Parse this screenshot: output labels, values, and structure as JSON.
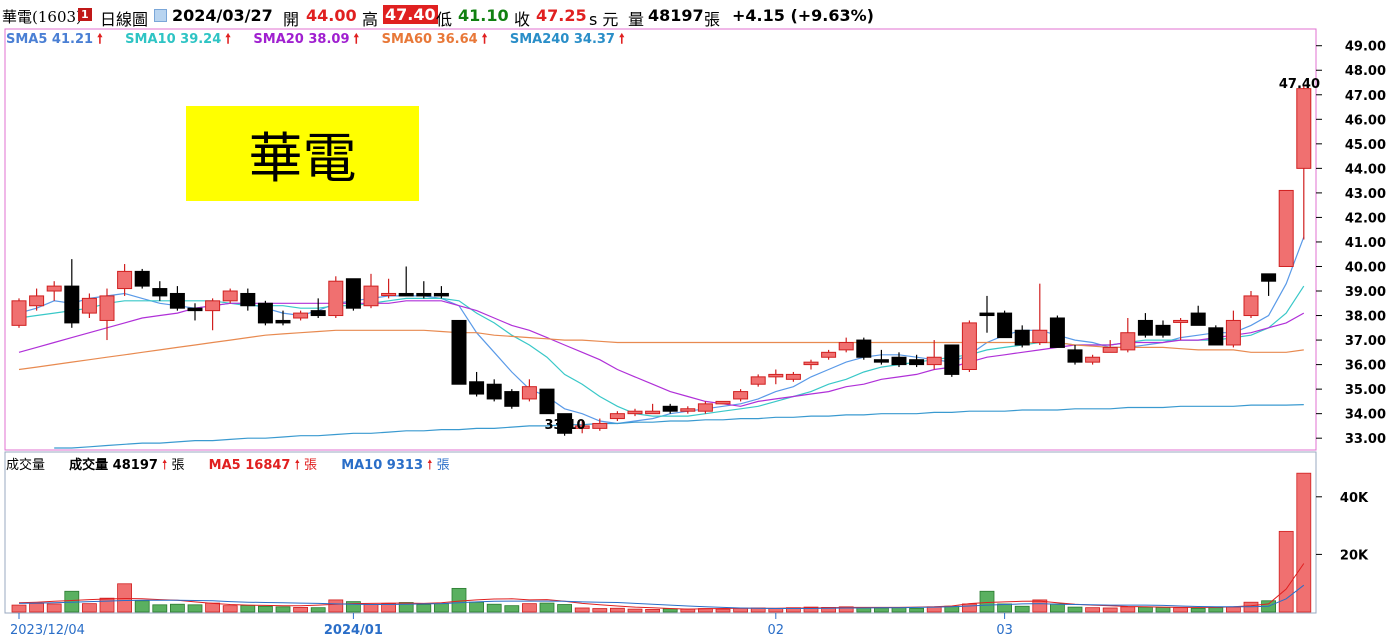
{
  "header": {
    "symbol": "華電(1603)",
    "flag": "1",
    "period": "日線圖",
    "date": "2024/03/27",
    "open_label": "開",
    "open": "44.00",
    "high_label": "高",
    "high": "47.40",
    "low_label": "低",
    "low": "41.10",
    "close_label": "收",
    "close": "47.25",
    "unit": "s 元",
    "volume_label": "量",
    "volume": "48197",
    "volume_unit": "張",
    "change": "+4.15 (+9.63%)"
  },
  "ma_legend": [
    {
      "label": "SMA5 41.21",
      "color": "#4a7fd4"
    },
    {
      "label": "SMA10 39.24",
      "color": "#2ec4c4"
    },
    {
      "label": "SMA20 38.09",
      "color": "#a020d0"
    },
    {
      "label": "SMA60 36.64",
      "color": "#e87838"
    },
    {
      "label": "SMA240 34.37",
      "color": "#2a8ec8"
    }
  ],
  "vol_legend": {
    "title": "成交量",
    "items": [
      {
        "label": "成交量 48197",
        "unit": "張",
        "color": "#000000"
      },
      {
        "label": "MA5 16847",
        "unit": "張",
        "color": "#e02020"
      },
      {
        "label": "MA10 9313",
        "unit": "張",
        "color": "#2a6ec8"
      }
    ]
  },
  "stamp_text": "華電",
  "annotations": {
    "high_label": "47.40",
    "low_label": "33.10"
  },
  "chart_data": {
    "type": "candlestick",
    "ylim": [
      32.6,
      49.6
    ],
    "yticks": [
      33,
      34,
      35,
      36,
      37,
      38,
      39,
      40,
      41,
      42,
      43,
      44,
      45,
      46,
      47,
      48,
      49
    ],
    "ytick_labels": [
      "33.00",
      "34.00",
      "35.00",
      "36.00",
      "37.00",
      "38.00",
      "39.00",
      "40.00",
      "41.00",
      "42.00",
      "43.00",
      "44.00",
      "45.00",
      "46.00",
      "47.00",
      "48.00",
      "49.00"
    ],
    "volume_ylim": [
      0,
      50000
    ],
    "volume_ticks": [
      20000,
      40000
    ],
    "volume_tick_labels": [
      "20K",
      "40K"
    ],
    "x_labels": [
      {
        "label": "2023/12/04",
        "index": 0
      },
      {
        "label": "2024/01",
        "index": 19
      },
      {
        "label": "02",
        "index": 43
      },
      {
        "label": "03",
        "index": 56
      }
    ],
    "candles": [
      {
        "o": 37.6,
        "h": 38.7,
        "l": 37.5,
        "c": 38.6,
        "v": 2400
      },
      {
        "o": 38.4,
        "h": 39.1,
        "l": 38.2,
        "c": 38.8,
        "v": 3000
      },
      {
        "o": 39.0,
        "h": 39.4,
        "l": 38.6,
        "c": 39.2,
        "v": 2800
      },
      {
        "o": 39.2,
        "h": 40.3,
        "l": 37.5,
        "c": 37.7,
        "v": 7200
      },
      {
        "o": 38.1,
        "h": 38.9,
        "l": 37.9,
        "c": 38.7,
        "v": 2900
      },
      {
        "o": 37.8,
        "h": 39.1,
        "l": 37.0,
        "c": 38.8,
        "v": 4800
      },
      {
        "o": 39.1,
        "h": 40.1,
        "l": 38.8,
        "c": 39.8,
        "v": 9800
      },
      {
        "o": 39.8,
        "h": 39.9,
        "l": 39.1,
        "c": 39.2,
        "v": 3900
      },
      {
        "o": 39.1,
        "h": 39.4,
        "l": 38.6,
        "c": 38.8,
        "v": 2500
      },
      {
        "o": 38.9,
        "h": 39.2,
        "l": 38.2,
        "c": 38.3,
        "v": 2700
      },
      {
        "o": 38.3,
        "h": 38.5,
        "l": 37.8,
        "c": 38.2,
        "v": 2500
      },
      {
        "o": 38.2,
        "h": 38.7,
        "l": 37.4,
        "c": 38.6,
        "v": 3100
      },
      {
        "o": 38.6,
        "h": 39.1,
        "l": 38.5,
        "c": 39.0,
        "v": 2200
      },
      {
        "o": 38.9,
        "h": 39.1,
        "l": 38.2,
        "c": 38.4,
        "v": 2300
      },
      {
        "o": 38.5,
        "h": 38.6,
        "l": 37.6,
        "c": 37.7,
        "v": 2000
      },
      {
        "o": 37.8,
        "h": 38.2,
        "l": 37.6,
        "c": 37.7,
        "v": 1800
      },
      {
        "o": 37.9,
        "h": 38.2,
        "l": 37.8,
        "c": 38.1,
        "v": 1600
      },
      {
        "o": 38.2,
        "h": 38.7,
        "l": 37.9,
        "c": 38.0,
        "v": 1500
      },
      {
        "o": 38.0,
        "h": 39.6,
        "l": 37.9,
        "c": 39.4,
        "v": 4200
      },
      {
        "o": 39.5,
        "h": 39.5,
        "l": 38.2,
        "c": 38.3,
        "v": 3600
      },
      {
        "o": 38.4,
        "h": 39.7,
        "l": 38.3,
        "c": 39.2,
        "v": 2600
      },
      {
        "o": 38.9,
        "h": 39.5,
        "l": 38.7,
        "c": 38.9,
        "v": 2800
      },
      {
        "o": 38.9,
        "h": 40.0,
        "l": 38.8,
        "c": 38.8,
        "v": 3300
      },
      {
        "o": 38.9,
        "h": 39.4,
        "l": 38.7,
        "c": 38.8,
        "v": 2600
      },
      {
        "o": 38.9,
        "h": 39.2,
        "l": 38.7,
        "c": 38.8,
        "v": 2900
      },
      {
        "o": 37.8,
        "h": 37.8,
        "l": 35.2,
        "c": 35.2,
        "v": 8200
      },
      {
        "o": 35.3,
        "h": 35.7,
        "l": 34.7,
        "c": 34.8,
        "v": 3400
      },
      {
        "o": 35.2,
        "h": 35.4,
        "l": 34.5,
        "c": 34.6,
        "v": 2700
      },
      {
        "o": 34.9,
        "h": 35.0,
        "l": 34.2,
        "c": 34.3,
        "v": 2200
      },
      {
        "o": 34.6,
        "h": 35.4,
        "l": 34.5,
        "c": 35.1,
        "v": 2900
      },
      {
        "o": 35.0,
        "h": 35.0,
        "l": 34.0,
        "c": 34.0,
        "v": 3100
      },
      {
        "o": 34.0,
        "h": 34.0,
        "l": 33.1,
        "c": 33.2,
        "v": 2600
      },
      {
        "o": 33.4,
        "h": 33.7,
        "l": 33.2,
        "c": 33.5,
        "v": 1400
      },
      {
        "o": 33.4,
        "h": 33.8,
        "l": 33.3,
        "c": 33.6,
        "v": 1200
      },
      {
        "o": 33.8,
        "h": 34.1,
        "l": 33.7,
        "c": 34.0,
        "v": 1300
      },
      {
        "o": 34.0,
        "h": 34.2,
        "l": 33.9,
        "c": 34.1,
        "v": 1000
      },
      {
        "o": 34.0,
        "h": 34.4,
        "l": 34.0,
        "c": 34.1,
        "v": 900
      },
      {
        "o": 34.3,
        "h": 34.4,
        "l": 34.0,
        "c": 34.1,
        "v": 1100
      },
      {
        "o": 34.1,
        "h": 34.3,
        "l": 34.0,
        "c": 34.2,
        "v": 1000
      },
      {
        "o": 34.1,
        "h": 34.5,
        "l": 34.0,
        "c": 34.4,
        "v": 1200
      },
      {
        "o": 34.4,
        "h": 34.5,
        "l": 34.4,
        "c": 34.5,
        "v": 1000
      },
      {
        "o": 34.6,
        "h": 35.0,
        "l": 34.5,
        "c": 34.9,
        "v": 1300
      },
      {
        "o": 35.2,
        "h": 35.6,
        "l": 35.1,
        "c": 35.5,
        "v": 1400
      },
      {
        "o": 35.5,
        "h": 35.8,
        "l": 35.2,
        "c": 35.6,
        "v": 1200
      },
      {
        "o": 35.4,
        "h": 35.7,
        "l": 35.3,
        "c": 35.6,
        "v": 1500
      },
      {
        "o": 36.0,
        "h": 36.2,
        "l": 35.8,
        "c": 36.1,
        "v": 1700
      },
      {
        "o": 36.3,
        "h": 36.6,
        "l": 36.2,
        "c": 36.5,
        "v": 1600
      },
      {
        "o": 36.6,
        "h": 37.1,
        "l": 36.5,
        "c": 36.9,
        "v": 1800
      },
      {
        "o": 37.0,
        "h": 37.1,
        "l": 36.2,
        "c": 36.3,
        "v": 1500
      },
      {
        "o": 36.2,
        "h": 36.6,
        "l": 36.0,
        "c": 36.1,
        "v": 1400
      },
      {
        "o": 36.3,
        "h": 36.5,
        "l": 35.9,
        "c": 36.0,
        "v": 1600
      },
      {
        "o": 36.2,
        "h": 36.4,
        "l": 35.9,
        "c": 36.0,
        "v": 1300
      },
      {
        "o": 36.0,
        "h": 37.0,
        "l": 35.8,
        "c": 36.3,
        "v": 1800
      },
      {
        "o": 36.8,
        "h": 36.8,
        "l": 35.5,
        "c": 35.6,
        "v": 2000
      },
      {
        "o": 35.8,
        "h": 37.8,
        "l": 35.7,
        "c": 37.7,
        "v": 2800
      },
      {
        "o": 38.1,
        "h": 38.8,
        "l": 37.3,
        "c": 38.0,
        "v": 7200
      },
      {
        "o": 38.1,
        "h": 38.2,
        "l": 37.1,
        "c": 37.1,
        "v": 2800
      },
      {
        "o": 37.4,
        "h": 37.6,
        "l": 36.7,
        "c": 36.8,
        "v": 2000
      },
      {
        "o": 36.9,
        "h": 39.3,
        "l": 36.8,
        "c": 37.4,
        "v": 4200
      },
      {
        "o": 37.9,
        "h": 38.0,
        "l": 36.7,
        "c": 36.7,
        "v": 2800
      },
      {
        "o": 36.6,
        "h": 36.8,
        "l": 36.0,
        "c": 36.1,
        "v": 1700
      },
      {
        "o": 36.1,
        "h": 36.4,
        "l": 36.0,
        "c": 36.3,
        "v": 1500
      },
      {
        "o": 36.5,
        "h": 37.0,
        "l": 36.5,
        "c": 36.7,
        "v": 1400
      },
      {
        "o": 36.6,
        "h": 37.9,
        "l": 36.5,
        "c": 37.3,
        "v": 1800
      },
      {
        "o": 37.8,
        "h": 38.1,
        "l": 37.1,
        "c": 37.2,
        "v": 1700
      },
      {
        "o": 37.6,
        "h": 37.8,
        "l": 37.1,
        "c": 37.2,
        "v": 1600
      },
      {
        "o": 37.8,
        "h": 37.9,
        "l": 37.0,
        "c": 37.8,
        "v": 1500
      },
      {
        "o": 38.1,
        "h": 38.4,
        "l": 37.6,
        "c": 37.6,
        "v": 1300
      },
      {
        "o": 37.5,
        "h": 37.6,
        "l": 36.8,
        "c": 36.8,
        "v": 1500
      },
      {
        "o": 36.8,
        "h": 38.2,
        "l": 36.7,
        "c": 37.8,
        "v": 1700
      },
      {
        "o": 38.0,
        "h": 39.0,
        "l": 37.9,
        "c": 38.8,
        "v": 3400
      },
      {
        "o": 39.7,
        "h": 39.7,
        "l": 38.8,
        "c": 39.4,
        "v": 3900
      },
      {
        "o": 40.0,
        "h": 43.1,
        "l": 40.0,
        "c": 43.1,
        "v": 28000
      },
      {
        "o": 44.0,
        "h": 47.4,
        "l": 41.1,
        "c": 47.25,
        "v": 48197
      }
    ],
    "ma_lines": [
      {
        "name": "SMA5",
        "color": "#5a9ae8",
        "values": [
          38.1,
          38.3,
          38.6,
          38.5,
          38.7,
          38.8,
          38.9,
          38.7,
          38.5,
          38.4,
          38.3,
          38.4,
          38.5,
          38.5,
          38.3,
          38.1,
          38.0,
          38.2,
          38.5,
          38.6,
          38.7,
          38.8,
          38.8,
          38.8,
          38.7,
          38.4,
          37.3,
          36.5,
          35.7,
          35.0,
          34.7,
          34.2,
          34.0,
          33.7,
          33.6,
          33.7,
          33.8,
          34.0,
          34.1,
          34.2,
          34.3,
          34.4,
          34.6,
          34.9,
          35.1,
          35.5,
          35.8,
          36.1,
          36.3,
          36.4,
          36.4,
          36.3,
          36.2,
          36.1,
          36.4,
          36.9,
          37.2,
          37.4,
          37.4,
          37.2,
          37.0,
          36.9,
          36.7,
          36.7,
          36.8,
          36.9,
          37.1,
          37.2,
          37.3,
          37.3,
          37.6,
          38.0,
          39.3,
          41.2
        ]
      },
      {
        "name": "SMA10",
        "color": "#39c8c8",
        "values": [
          37.9,
          38.0,
          38.1,
          38.2,
          38.3,
          38.5,
          38.6,
          38.6,
          38.6,
          38.6,
          38.6,
          38.6,
          38.5,
          38.4,
          38.4,
          38.4,
          38.3,
          38.3,
          38.4,
          38.4,
          38.5,
          38.6,
          38.7,
          38.7,
          38.7,
          38.6,
          38.1,
          37.7,
          37.2,
          36.8,
          36.3,
          35.6,
          35.2,
          34.7,
          34.3,
          34.0,
          33.9,
          33.9,
          33.9,
          34.0,
          34.1,
          34.2,
          34.3,
          34.5,
          34.7,
          34.9,
          35.2,
          35.4,
          35.7,
          35.9,
          36.0,
          36.1,
          36.2,
          36.3,
          36.4,
          36.6,
          36.7,
          36.8,
          36.9,
          36.9,
          36.8,
          36.8,
          36.8,
          36.9,
          37.0,
          37.0,
          37.0,
          37.0,
          37.0,
          37.1,
          37.2,
          37.5,
          38.1,
          39.2
        ]
      },
      {
        "name": "SMA20",
        "color": "#b030d8",
        "values": [
          36.5,
          36.7,
          36.9,
          37.1,
          37.3,
          37.5,
          37.7,
          37.9,
          38.0,
          38.1,
          38.3,
          38.4,
          38.5,
          38.5,
          38.5,
          38.5,
          38.5,
          38.5,
          38.5,
          38.5,
          38.5,
          38.5,
          38.6,
          38.6,
          38.6,
          38.4,
          38.2,
          37.9,
          37.6,
          37.4,
          37.1,
          36.8,
          36.5,
          36.2,
          35.8,
          35.5,
          35.2,
          34.9,
          34.7,
          34.5,
          34.4,
          34.3,
          34.5,
          34.6,
          34.7,
          34.8,
          34.9,
          35.1,
          35.2,
          35.4,
          35.5,
          35.6,
          35.8,
          35.9,
          36.1,
          36.3,
          36.4,
          36.5,
          36.6,
          36.7,
          36.8,
          36.8,
          36.8,
          36.9,
          36.9,
          36.9,
          37.0,
          37.0,
          37.1,
          37.2,
          37.3,
          37.5,
          37.7,
          38.1
        ]
      },
      {
        "name": "SMA60",
        "color": "#e88a50",
        "values": [
          35.8,
          35.9,
          36.0,
          36.1,
          36.2,
          36.3,
          36.4,
          36.5,
          36.6,
          36.7,
          36.8,
          36.9,
          37.0,
          37.1,
          37.2,
          37.25,
          37.3,
          37.35,
          37.4,
          37.4,
          37.4,
          37.4,
          37.4,
          37.4,
          37.35,
          37.3,
          37.3,
          37.2,
          37.15,
          37.1,
          37.05,
          37.0,
          37.0,
          36.95,
          36.9,
          36.9,
          36.9,
          36.9,
          36.9,
          36.9,
          36.9,
          36.9,
          36.9,
          36.9,
          36.9,
          36.9,
          36.9,
          36.9,
          36.9,
          36.9,
          36.9,
          36.9,
          36.9,
          36.9,
          36.9,
          36.9,
          36.9,
          36.9,
          36.9,
          36.9,
          36.8,
          36.75,
          36.7,
          36.7,
          36.7,
          36.7,
          36.65,
          36.6,
          36.6,
          36.6,
          36.5,
          36.5,
          36.5,
          36.6
        ]
      },
      {
        "name": "SMA240",
        "color": "#3a9ad0",
        "values": [
          32.5,
          32.55,
          32.6,
          32.6,
          32.65,
          32.7,
          32.75,
          32.8,
          32.8,
          32.85,
          32.9,
          32.9,
          32.95,
          33.0,
          33.0,
          33.05,
          33.1,
          33.1,
          33.15,
          33.2,
          33.2,
          33.25,
          33.3,
          33.3,
          33.35,
          33.35,
          33.4,
          33.4,
          33.45,
          33.5,
          33.5,
          33.55,
          33.55,
          33.6,
          33.6,
          33.65,
          33.65,
          33.7,
          33.7,
          33.75,
          33.75,
          33.8,
          33.8,
          33.85,
          33.85,
          33.9,
          33.9,
          33.95,
          33.95,
          34.0,
          34.0,
          34.0,
          34.05,
          34.05,
          34.1,
          34.1,
          34.1,
          34.15,
          34.15,
          34.15,
          34.2,
          34.2,
          34.2,
          34.25,
          34.25,
          34.25,
          34.3,
          34.3,
          34.3,
          34.3,
          34.35,
          34.35,
          34.35,
          34.37
        ]
      }
    ],
    "volume_ma_lines": [
      {
        "name": "MA5",
        "color": "#e02020",
        "values": [
          3200,
          3400,
          3700,
          4000,
          4300,
          4500,
          4700,
          4600,
          4300,
          4100,
          3500,
          3000,
          2600,
          2400,
          2300,
          2200,
          2200,
          2400,
          2700,
          2900,
          3000,
          3100,
          3100,
          3000,
          3200,
          3800,
          4200,
          4500,
          4600,
          4200,
          4300,
          3700,
          3000,
          2500,
          2100,
          1700,
          1500,
          1200,
          1000,
          1100,
          1200,
          1300,
          1300,
          1300,
          1400,
          1400,
          1500,
          1600,
          1600,
          1600,
          1600,
          1700,
          1800,
          2100,
          2900,
          3300,
          3500,
          3700,
          3800,
          3200,
          2700,
          2400,
          2200,
          1900,
          1800,
          1700,
          1600,
          1600,
          1600,
          1800,
          2200,
          2800,
          8000,
          16847
        ]
      },
      {
        "name": "MA10",
        "color": "#2a6ec8",
        "values": [
          3000,
          3100,
          3200,
          3400,
          3600,
          3800,
          4000,
          4100,
          4100,
          4100,
          4000,
          3900,
          3600,
          3400,
          3300,
          3200,
          3100,
          3000,
          2800,
          2700,
          2600,
          2600,
          2700,
          2800,
          2900,
          3200,
          3500,
          3700,
          3800,
          3800,
          3800,
          3700,
          3500,
          3400,
          3300,
          3000,
          2700,
          2400,
          2100,
          1800,
          1600,
          1400,
          1300,
          1200,
          1200,
          1200,
          1300,
          1400,
          1400,
          1500,
          1500,
          1600,
          1700,
          1800,
          2100,
          2400,
          2600,
          2800,
          2900,
          2700,
          2600,
          2500,
          2400,
          2400,
          2400,
          2300,
          2100,
          1900,
          1800,
          1800,
          1800,
          2000,
          4600,
          9313
        ]
      }
    ]
  }
}
